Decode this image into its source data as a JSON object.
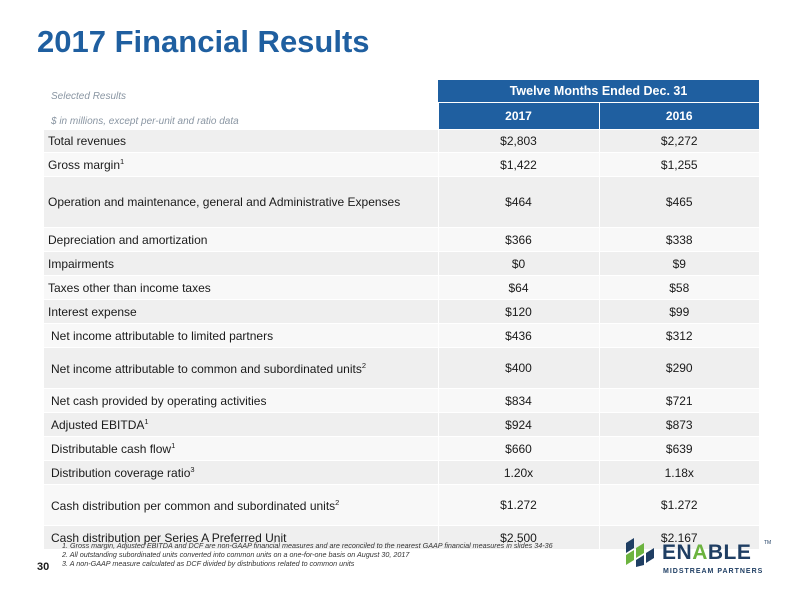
{
  "title": "2017 Financial Results",
  "table": {
    "selected_results": "Selected Results",
    "units_note": "$ in millions, except per-unit and ratio data",
    "group_header": "Twelve Months Ended Dec. 31",
    "year_a": "2017",
    "year_b": "2016",
    "rows": [
      {
        "label": "Total revenues",
        "sup": "",
        "a": "$2,803",
        "b": "$2,272"
      },
      {
        "label": "Gross margin",
        "sup": "1",
        "a": "$1,422",
        "b": "$1,255"
      },
      {
        "label": "Operation and maintenance, general and Administrative Expenses",
        "sup": "",
        "a": "$464",
        "b": "$465"
      },
      {
        "label": "Depreciation and amortization",
        "sup": "",
        "a": "$366",
        "b": "$338"
      },
      {
        "label": "Impairments",
        "sup": "",
        "a": "$0",
        "b": "$9"
      },
      {
        "label": "Taxes other than income taxes",
        "sup": "",
        "a": "$64",
        "b": "$58"
      },
      {
        "label": "Interest expense",
        "sup": "",
        "a": "$120",
        "b": "$99"
      },
      {
        "label": "Net income attributable to limited partners",
        "sup": "",
        "a": "$436",
        "b": "$312"
      },
      {
        "label": "Net income attributable to common and subordinated units",
        "sup": "2",
        "a": "$400",
        "b": "$290"
      },
      {
        "label": "Net cash provided by operating activities",
        "sup": "",
        "a": "$834",
        "b": "$721"
      },
      {
        "label": "Adjusted EBITDA",
        "sup": "1",
        "a": "$924",
        "b": "$873"
      },
      {
        "label": "Distributable cash flow",
        "sup": "1",
        "a": "$660",
        "b": "$639"
      },
      {
        "label": "Distribution coverage ratio",
        "sup": "3",
        "a": "1.20x",
        "b": "1.18x"
      },
      {
        "label": "Cash distribution per common and subordinated units",
        "sup": "2",
        "a": "$1.272",
        "b": "$1.272"
      },
      {
        "label": "Cash distribution per Series A Preferred Unit",
        "sup": "",
        "a": "$2.500",
        "b": "$2.167"
      }
    ]
  },
  "footnotes": [
    "1. Gross margin, Adjusted EBITDA and DCF are non-GAAP financial measures and are reconciled to the nearest GAAP financial measures in slides 34-36",
    "2. All outstanding subordinated units converted into common units on a one-for-one basis on August 30, 2017",
    "3. A non-GAAP measure calculated as DCF divided by distributions related to common units"
  ],
  "page_number": "30",
  "logo": {
    "word_main": "EN",
    "word_accent": "A",
    "word_end": "BLE",
    "tm": "TM",
    "subtitle": "MIDSTREAM PARTNERS"
  }
}
